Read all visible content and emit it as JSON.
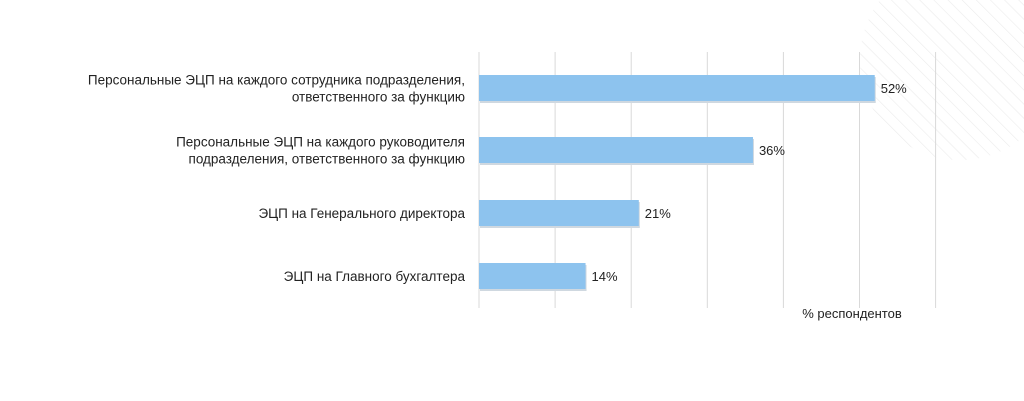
{
  "chart_data": {
    "type": "bar",
    "orientation": "horizontal",
    "categories": [
      [
        "Персональные ЭЦП на каждого сотрудника подразделения,",
        "ответственного за функцию"
      ],
      [
        "Персональные ЭЦП на каждого руководителя",
        "подразделения, ответственного за функцию"
      ],
      [
        "ЭЦП на Генерального директора"
      ],
      [
        "ЭЦП на Главного бухгалтера"
      ]
    ],
    "values": [
      52,
      36,
      21,
      14
    ],
    "value_labels": [
      "52%",
      "36%",
      "21%",
      "14%"
    ],
    "xlabel": "% респондентов",
    "xlim": [
      0,
      60
    ],
    "grid": true,
    "bar_color": "#8DC3EE",
    "grid_color": "#D9D9D9"
  }
}
